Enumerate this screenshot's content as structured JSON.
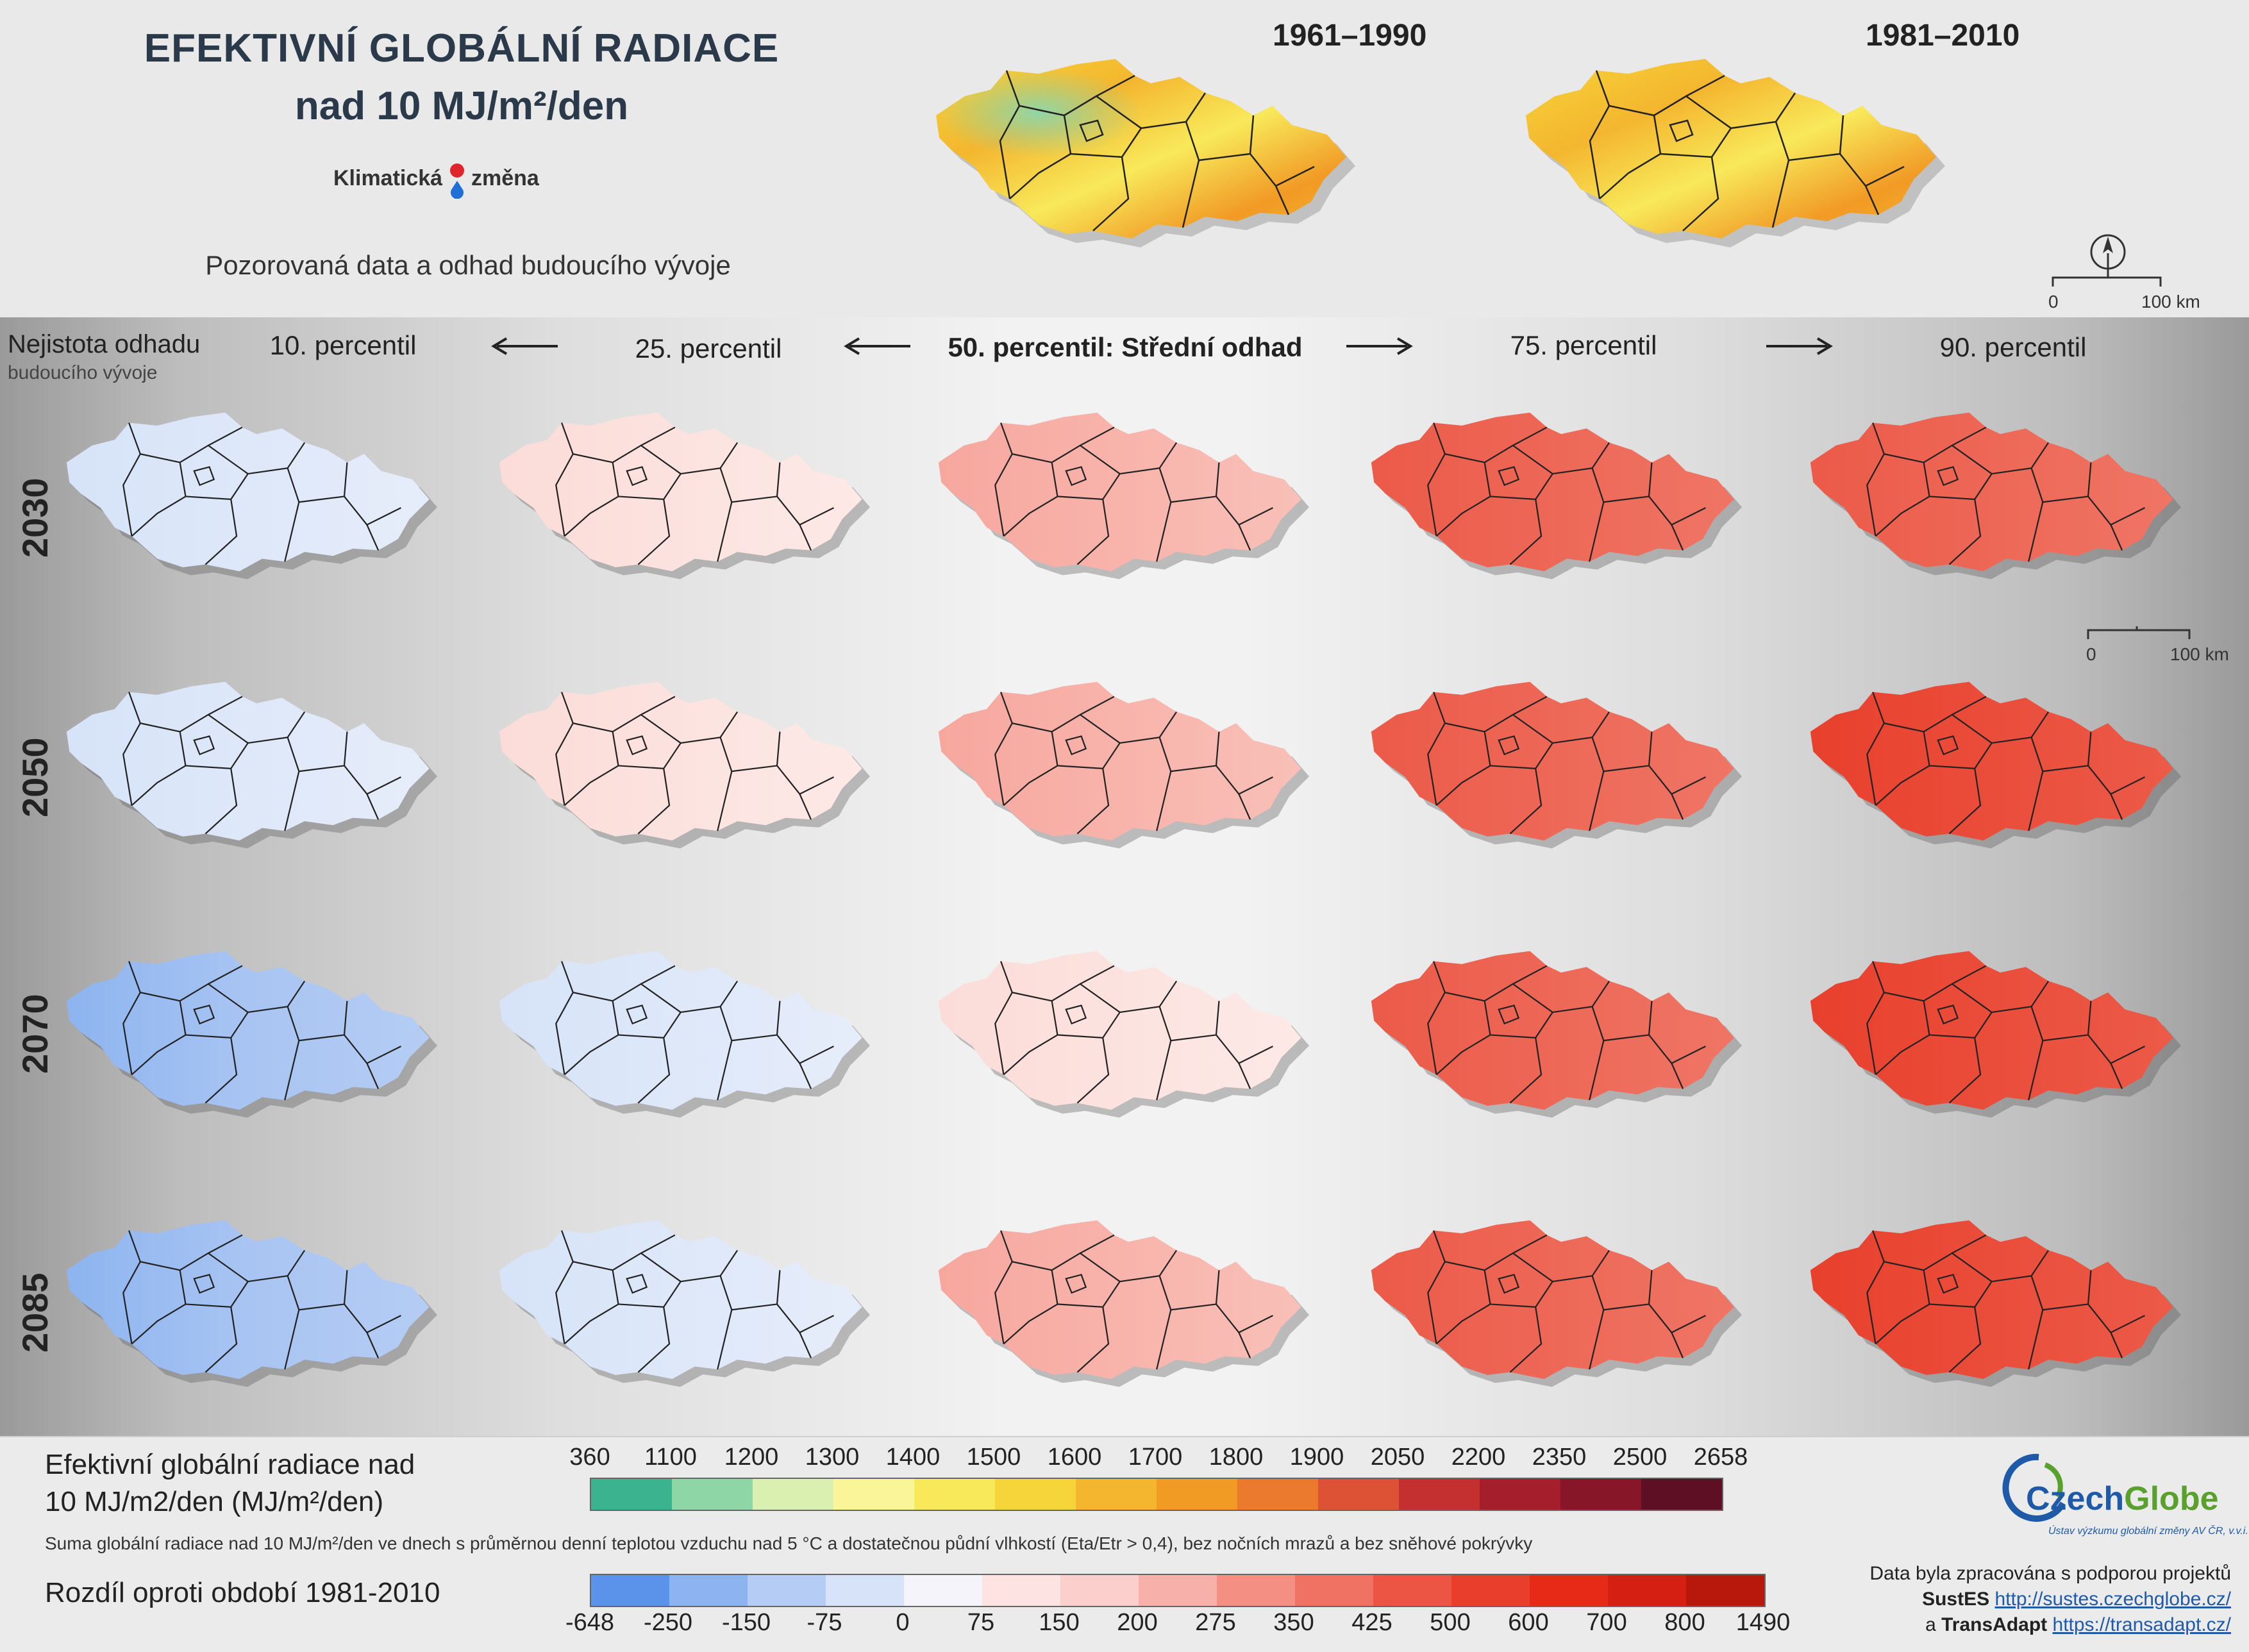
{
  "header": {
    "title_line1": "EFEKTIVNÍ GLOBÁLNÍ RADIACE",
    "title_line2": "nad 10 MJ/m²/den",
    "brand_left": "Klimatická",
    "brand_right": "změna",
    "subtitle": "Pozorovaná data a odhad budoucího vývoje"
  },
  "observed": [
    {
      "period": "1961–1990"
    },
    {
      "period": "1981–2010"
    }
  ],
  "scalebar": {
    "start": "0",
    "end": "100 km"
  },
  "uncertainty": {
    "line1": "Nejistota odhadu",
    "line2": "budoucího vývoje"
  },
  "columns": [
    "10. percentil",
    "25. percentil",
    "50. percentil: Střední odhad",
    "75. percentil",
    "90. percentil"
  ],
  "rows": [
    "2030",
    "2050",
    "2070",
    "2085"
  ],
  "legend_absolute": {
    "title_line1": "Efektivní globální radiace nad",
    "title_line2": "10 MJ/m2/den (MJ/m²/den)",
    "ticks": [
      "360",
      "1100",
      "1200",
      "1300",
      "1400",
      "1500",
      "1600",
      "1700",
      "1800",
      "1900",
      "2050",
      "2200",
      "2350",
      "2500",
      "2658"
    ],
    "colors": [
      "#3bb38f",
      "#8fd6a6",
      "#d9f0b0",
      "#fbf59a",
      "#f8e95a",
      "#f6d53a",
      "#f4b62f",
      "#f19a24",
      "#ec7a2e",
      "#dd5134",
      "#c4302f",
      "#a51e2b",
      "#861628",
      "#5e0f24"
    ]
  },
  "note": "Suma globální radiace nad 10 MJ/m²/den ve dnech s průměrnou denní teplotou vzduchu nad 5 °C a dostatečnou půdní vlhkostí (Eta/Etr > 0,4), bez nočních mrazů a bez sněhové pokrývky",
  "legend_difference": {
    "title": "Rozdíl oproti období 1981-2010",
    "ticks": [
      "-648",
      "-250",
      "-150",
      "-75",
      "0",
      "75",
      "150",
      "200",
      "275",
      "350",
      "425",
      "500",
      "600",
      "700",
      "800",
      "1490"
    ],
    "colors": [
      "#5b93ea",
      "#8db4f0",
      "#b5cdf4",
      "#d6e3f8",
      "#f4f4fa",
      "#fde4e2",
      "#fbcfcb",
      "#f8b1aa",
      "#f49083",
      "#f07262",
      "#ec5543",
      "#ea3e2c",
      "#e72a18",
      "#d41f12",
      "#b8170c"
    ]
  },
  "czechglobe": {
    "name_part1": "Czech",
    "name_part2": "Globe",
    "tagline": "Ústav výzkumu globální změny AV ČR, v.v.i."
  },
  "credits": {
    "line1": "Data byla zpracována s podporou projektů",
    "project1": "SustES",
    "link1": "http://sustes.czechglobe.cz/",
    "prefix2": "a",
    "project2": "TransAdapt",
    "link2": "https://transadapt.cz/"
  },
  "colors": {
    "title": "#2b3a4a",
    "czechglobe_blue": "#1e5aa8",
    "czechglobe_green": "#5aa02c"
  }
}
